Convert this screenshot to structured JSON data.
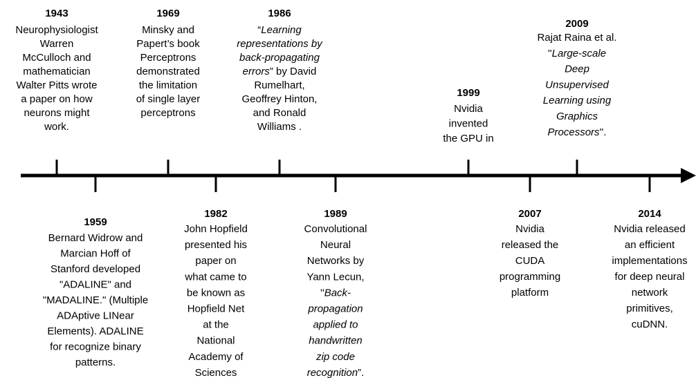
{
  "events": [
    {
      "year": "1943",
      "lines": [
        "Neurophysiologist",
        "Warren",
        "McCulloch and",
        "mathematician",
        "Walter Pitts wrote",
        "a paper on how",
        "neurons might",
        "work."
      ]
    },
    {
      "year": "1959",
      "lines": [
        "Bernard Widrow and",
        "Marcian Hoff of",
        "Stanford developed",
        "\"ADALINE\" and",
        "\"MADALINE.\" (Multiple",
        "ADAptive LINear",
        "Elements). ADALINE",
        "for recognize binary",
        "patterns."
      ]
    },
    {
      "year": "1969",
      "lines": [
        "Minsky and",
        "Papert’s book",
        "Perceptrons",
        "demonstrated",
        "the limitation",
        "of single layer",
        "perceptrons"
      ]
    },
    {
      "year": "1982",
      "lines": [
        "John Hopfield",
        "presented his",
        "paper on",
        "what came to",
        "be known as",
        "Hopfield Net",
        "at the",
        "National",
        "Academy of",
        "Sciences"
      ]
    },
    {
      "year": "1986",
      "lines": [
        [
          {
            "text": "“"
          },
          {
            "text": "Learning",
            "italic": true
          }
        ],
        [
          {
            "text": "representations by",
            "italic": true
          }
        ],
        [
          {
            "text": "back-propagating",
            "italic": true
          }
        ],
        [
          {
            "text": "errors",
            "italic": true
          },
          {
            "text": "” by David"
          }
        ],
        "Rumelhart,",
        "Geoffrey Hinton,",
        "and Ronald",
        "Williams ."
      ]
    },
    {
      "year": "1989",
      "lines": [
        "Convolutional",
        "Neural",
        "Networks by",
        "Yann Lecun,",
        [
          {
            "text": "''"
          },
          {
            "text": "Back-",
            "italic": true
          }
        ],
        [
          {
            "text": "propagation",
            "italic": true
          }
        ],
        [
          {
            "text": "applied to",
            "italic": true
          }
        ],
        [
          {
            "text": "handwritten",
            "italic": true
          }
        ],
        [
          {
            "text": "zip code",
            "italic": true
          }
        ],
        [
          {
            "text": "recognition",
            "italic": true
          },
          {
            "text": "”."
          }
        ]
      ]
    },
    {
      "year": "1999",
      "color": "#1f7bbf",
      "lines": [
        "Nvidia",
        "invented",
        "the GPU in"
      ]
    },
    {
      "year": "2007",
      "color": "#1f7bbf",
      "lines": [
        "Nvidia",
        "released the",
        "CUDA",
        "programming",
        "platform"
      ]
    },
    {
      "year": "2009",
      "color": "#1f7bbf",
      "lines": [
        "Rajat Raina et al.",
        [
          {
            "text": "''"
          },
          {
            "text": "Large-scale",
            "italic": true
          }
        ],
        [
          {
            "text": "Deep",
            "italic": true
          }
        ],
        [
          {
            "text": "Unsupervised",
            "italic": true
          }
        ],
        [
          {
            "text": "Learning using",
            "italic": true
          }
        ],
        [
          {
            "text": "Graphics",
            "italic": true
          }
        ],
        [
          {
            "text": "Processors",
            "italic": true
          },
          {
            "text": "''."
          }
        ]
      ]
    },
    {
      "year": "2014",
      "color": "#1f7bbf",
      "lines": [
        "Nvidia released",
        "an efficient",
        "implementations",
        "for deep neural",
        "network",
        "primitives,",
        "cuDNN."
      ]
    }
  ]
}
